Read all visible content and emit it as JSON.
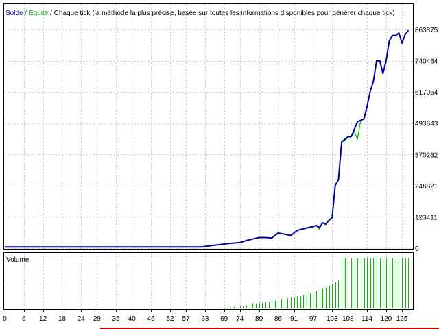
{
  "legend": {
    "balance": "Solde",
    "sep1": " / ",
    "equity": "Equité",
    "sep2": " / ",
    "mode": "Chaque tick (la méthode la plus précise, basée sur toutes les informations disponibles pour générer chaque tick)"
  },
  "volume_label": "Volume",
  "colors": {
    "balance": "#0000a0",
    "equity": "#00b000",
    "volume": "#00c000",
    "grid": "#c0c0c0",
    "frame": "#000000",
    "bottom_accent": "#c00000"
  },
  "chart_data": [
    {
      "type": "line",
      "title": "",
      "x_ticks": [
        "0",
        "6",
        "12",
        "18",
        "24",
        "29",
        "35",
        "40",
        "46",
        "52",
        "57",
        "63",
        "69",
        "74",
        "80",
        "86",
        "91",
        "97",
        "103",
        "108",
        "114",
        "120",
        "125"
      ],
      "xlim": [
        0,
        128
      ],
      "y_ticks": [
        "0",
        "123411",
        "246821",
        "370232",
        "493643",
        "617054",
        "740464",
        "863875"
      ],
      "ylim": [
        0,
        863875
      ],
      "grid": true,
      "legend": "top-left",
      "series": [
        {
          "name": "Solde",
          "x": [
            0,
            62,
            65,
            68,
            70,
            72,
            74,
            76,
            78,
            80,
            82,
            84,
            85,
            86,
            88,
            90,
            92,
            95,
            97,
            98,
            99,
            100,
            101,
            102,
            103,
            104,
            105,
            106,
            107,
            108,
            109,
            110,
            111,
            112,
            113,
            114,
            115,
            116,
            117,
            118,
            119,
            120,
            121,
            122,
            123,
            124,
            125,
            126,
            127
          ],
          "y": [
            5000,
            5000,
            10000,
            14000,
            18000,
            20000,
            22000,
            30000,
            36000,
            42000,
            42000,
            40000,
            50000,
            60000,
            55000,
            50000,
            70000,
            80000,
            85000,
            90000,
            82000,
            100000,
            95000,
            110000,
            120000,
            250000,
            270000,
            420000,
            430000,
            440000,
            440000,
            470000,
            500000,
            505000,
            510000,
            560000,
            620000,
            660000,
            740000,
            740000,
            690000,
            740000,
            820000,
            840000,
            840000,
            850000,
            810000,
            845000,
            860000
          ]
        },
        {
          "name": "Equité",
          "x": [
            0,
            62,
            65,
            68,
            70,
            72,
            74,
            76,
            78,
            80,
            82,
            84,
            85,
            86,
            88,
            90,
            92,
            95,
            97,
            98,
            99,
            100,
            101,
            102,
            103,
            104,
            105,
            106,
            107,
            108,
            109,
            110,
            111,
            112,
            113,
            114,
            115,
            116,
            117,
            118,
            119,
            120,
            121,
            122,
            123,
            124,
            125,
            126,
            127
          ],
          "y": [
            5000,
            5000,
            10000,
            14000,
            18000,
            20000,
            22000,
            30000,
            36000,
            42000,
            42000,
            40000,
            50000,
            58000,
            55000,
            50000,
            70000,
            78000,
            85000,
            88000,
            75000,
            100000,
            92000,
            108000,
            120000,
            245000,
            268000,
            418000,
            425000,
            438000,
            440000,
            460000,
            430000,
            505000,
            510000,
            558000,
            620000,
            658000,
            738000,
            738000,
            688000,
            740000,
            818000,
            838000,
            840000,
            848000,
            808000,
            845000,
            860000
          ]
        }
      ]
    },
    {
      "type": "bar",
      "title": "Volume",
      "x": [
        69,
        70,
        71,
        72,
        73,
        74,
        75,
        76,
        77,
        78,
        79,
        80,
        81,
        82,
        83,
        84,
        85,
        86,
        87,
        88,
        89,
        90,
        91,
        92,
        93,
        94,
        95,
        96,
        97,
        98,
        99,
        100,
        101,
        102,
        103,
        104,
        105,
        106,
        107,
        108,
        109,
        110,
        111,
        112,
        113,
        114,
        115,
        116,
        117,
        118,
        119,
        120,
        121,
        122,
        123,
        124,
        125,
        126,
        127
      ],
      "values": [
        1,
        1,
        1,
        2,
        2,
        3,
        3,
        4,
        5,
        6,
        6,
        7,
        7,
        8,
        8,
        9,
        9,
        10,
        11,
        11,
        12,
        13,
        13,
        14,
        15,
        16,
        17,
        18,
        19,
        21,
        22,
        24,
        25,
        27,
        29,
        31,
        33,
        60,
        60,
        60,
        60,
        60,
        60,
        60,
        60,
        60,
        60,
        60,
        60,
        60,
        60,
        60,
        60,
        60,
        60,
        60,
        60,
        60,
        60
      ],
      "ylim": [
        0,
        62
      ],
      "grid": true
    }
  ]
}
